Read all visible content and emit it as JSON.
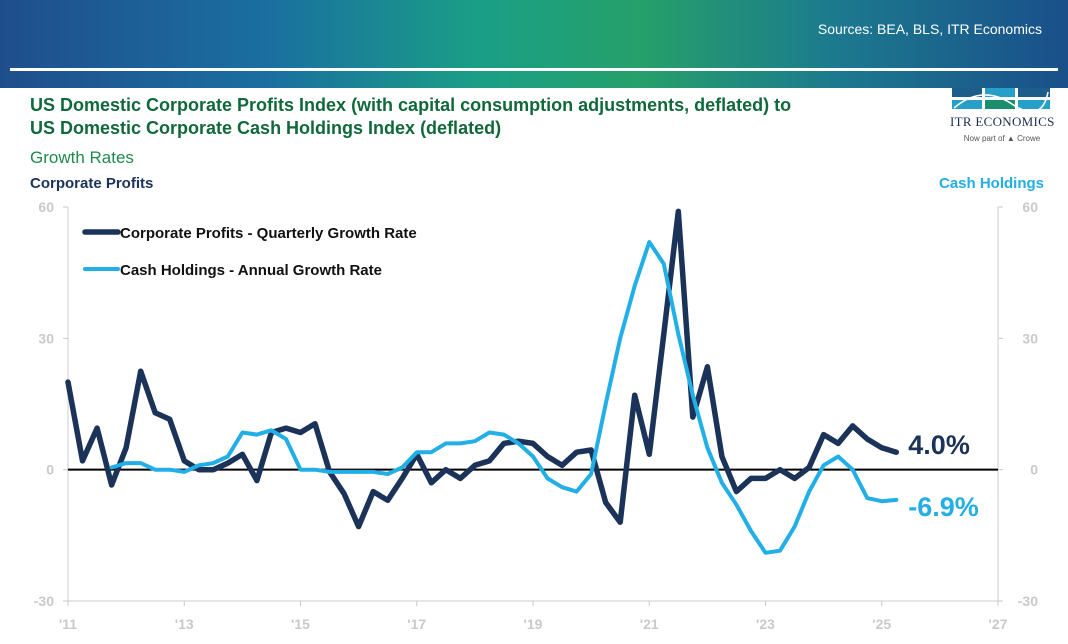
{
  "sources": "Sources: BEA, BLS, ITR Economics",
  "title_line1": "US Domestic Corporate Profits Index (with capital consumption adjustments, deflated) to",
  "title_line2": "US Domestic Corporate Cash Holdings Index (deflated)",
  "subtitle": "Growth Rates",
  "logo": {
    "name": "ITR ECONOMICS",
    "tagline": "Now part of",
    "partner": "Crowe"
  },
  "left_axis_title": "Corporate Profits",
  "right_axis_title": "Cash Holdings",
  "colors": {
    "profits": "#1c3359",
    "cash": "#22aee6",
    "title": "#11693b",
    "subtitle": "#1f8a4c",
    "tick": "#c9c9c9"
  },
  "chart_data": {
    "type": "line",
    "xlim": [
      2011,
      2027
    ],
    "ylim": [
      -30,
      60
    ],
    "x_ticks": [
      2011,
      2013,
      2015,
      2017,
      2019,
      2021,
      2023,
      2025,
      2027
    ],
    "x_tick_labels": [
      "'11",
      "'13",
      "'15",
      "'17",
      "'19",
      "'21",
      "'23",
      "'25",
      "'27"
    ],
    "y_ticks": [
      -30,
      0,
      30,
      60
    ],
    "y_tick_labels": [
      "-30",
      "0",
      "30",
      "60"
    ],
    "legend_position": "top-left",
    "series": [
      {
        "name": "Corporate Profits - Quarterly Growth Rate",
        "axis": "left",
        "end_label": "4.0%",
        "points": [
          [
            2011.0,
            20
          ],
          [
            2011.25,
            2
          ],
          [
            2011.5,
            9.5
          ],
          [
            2011.75,
            -3.5
          ],
          [
            2012.0,
            5
          ],
          [
            2012.25,
            22.5
          ],
          [
            2012.5,
            13
          ],
          [
            2012.75,
            11.5
          ],
          [
            2013.0,
            2
          ],
          [
            2013.25,
            0
          ],
          [
            2013.5,
            0
          ],
          [
            2013.75,
            1.5
          ],
          [
            2014.0,
            3.5
          ],
          [
            2014.25,
            -2.5
          ],
          [
            2014.5,
            8.5
          ],
          [
            2014.75,
            9.5
          ],
          [
            2015.0,
            8.5
          ],
          [
            2015.25,
            10.5
          ],
          [
            2015.5,
            -0.5
          ],
          [
            2015.75,
            -5.5
          ],
          [
            2016.0,
            -13
          ],
          [
            2016.25,
            -5
          ],
          [
            2016.5,
            -7
          ],
          [
            2016.75,
            -2
          ],
          [
            2017.0,
            3.5
          ],
          [
            2017.25,
            -3
          ],
          [
            2017.5,
            0
          ],
          [
            2017.75,
            -2
          ],
          [
            2018.0,
            1
          ],
          [
            2018.25,
            2
          ],
          [
            2018.5,
            6
          ],
          [
            2018.75,
            6.5
          ],
          [
            2019.0,
            6
          ],
          [
            2019.25,
            3
          ],
          [
            2019.5,
            1
          ],
          [
            2019.75,
            4
          ],
          [
            2020.0,
            4.5
          ],
          [
            2020.25,
            -7.5
          ],
          [
            2020.5,
            -12
          ],
          [
            2020.75,
            17
          ],
          [
            2021.0,
            3.5
          ],
          [
            2021.25,
            31
          ],
          [
            2021.5,
            59
          ],
          [
            2021.75,
            12
          ],
          [
            2022.0,
            23.5
          ],
          [
            2022.25,
            3
          ],
          [
            2022.5,
            -5
          ],
          [
            2022.75,
            -2
          ],
          [
            2023.0,
            -2
          ],
          [
            2023.25,
            0
          ],
          [
            2023.5,
            -2
          ],
          [
            2023.75,
            0.5
          ],
          [
            2024.0,
            8
          ],
          [
            2024.25,
            6
          ],
          [
            2024.5,
            10
          ],
          [
            2024.75,
            7
          ],
          [
            2025.0,
            5
          ],
          [
            2025.25,
            4
          ]
        ]
      },
      {
        "name": "Cash Holdings - Annual Growth Rate",
        "axis": "right",
        "end_label": "-6.9%",
        "points": [
          [
            2011.75,
            0.5
          ],
          [
            2012.0,
            1.5
          ],
          [
            2012.25,
            1.5
          ],
          [
            2012.5,
            0
          ],
          [
            2012.75,
            0
          ],
          [
            2013.0,
            -0.5
          ],
          [
            2013.25,
            1
          ],
          [
            2013.5,
            1.5
          ],
          [
            2013.75,
            3
          ],
          [
            2014.0,
            8.5
          ],
          [
            2014.25,
            8
          ],
          [
            2014.5,
            9
          ],
          [
            2014.75,
            7
          ],
          [
            2015.0,
            0
          ],
          [
            2015.25,
            0
          ],
          [
            2015.5,
            -0.5
          ],
          [
            2015.75,
            -0.5
          ],
          [
            2016.0,
            -0.5
          ],
          [
            2016.25,
            -0.5
          ],
          [
            2016.5,
            -1
          ],
          [
            2016.75,
            0.5
          ],
          [
            2017.0,
            4
          ],
          [
            2017.25,
            4
          ],
          [
            2017.5,
            6
          ],
          [
            2017.75,
            6
          ],
          [
            2018.0,
            6.5
          ],
          [
            2018.25,
            8.5
          ],
          [
            2018.5,
            8
          ],
          [
            2018.75,
            6
          ],
          [
            2019.0,
            3
          ],
          [
            2019.25,
            -2
          ],
          [
            2019.5,
            -4
          ],
          [
            2019.75,
            -5
          ],
          [
            2020.0,
            -1
          ],
          [
            2020.25,
            15
          ],
          [
            2020.5,
            30
          ],
          [
            2020.75,
            42
          ],
          [
            2021.0,
            52
          ],
          [
            2021.25,
            47
          ],
          [
            2021.5,
            31
          ],
          [
            2021.75,
            17
          ],
          [
            2022.0,
            5
          ],
          [
            2022.25,
            -3
          ],
          [
            2022.5,
            -8
          ],
          [
            2022.75,
            -14
          ],
          [
            2023.0,
            -19
          ],
          [
            2023.25,
            -18.5
          ],
          [
            2023.5,
            -13
          ],
          [
            2023.75,
            -5
          ],
          [
            2024.0,
            1
          ],
          [
            2024.25,
            3
          ],
          [
            2024.5,
            0
          ],
          [
            2024.75,
            -6.5
          ],
          [
            2025.0,
            -7.2
          ],
          [
            2025.25,
            -6.9
          ]
        ]
      }
    ]
  }
}
